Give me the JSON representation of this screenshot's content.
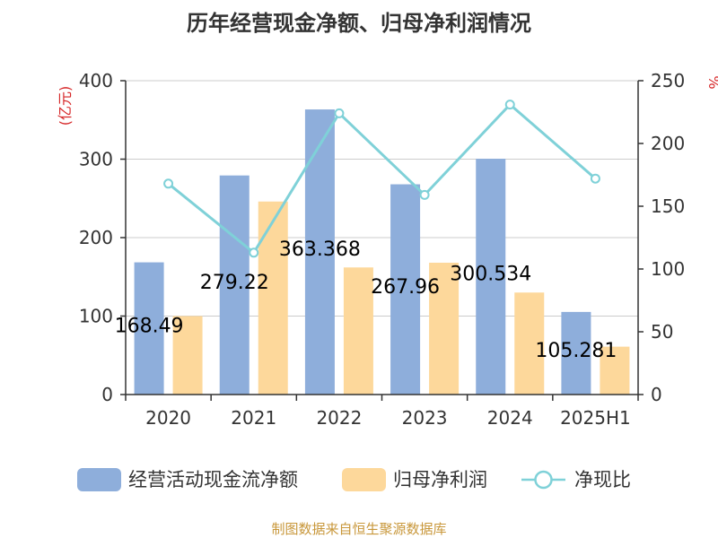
{
  "chart_data": {
    "type": "bar",
    "title": "历年经营现金净额、归母净利润情况",
    "y_left_unit": "(亿元)",
    "y_right_unit": "%",
    "y_left_range": [
      0,
      400
    ],
    "y_left_ticks": [
      "0",
      "100",
      "200",
      "300",
      "400"
    ],
    "y_right_range": [
      0,
      250
    ],
    "y_right_ticks": [
      "0",
      "50",
      "100",
      "150",
      "200",
      "250"
    ],
    "grid": true,
    "legend_position": "bottom",
    "categories": [
      "2020",
      "2021",
      "2022",
      "2023",
      "2024",
      "2025H1"
    ],
    "series": [
      {
        "name": "经营活动现金流净额",
        "type": "bar",
        "axis": "left",
        "color": "#8eaedb",
        "values": [
          168.49,
          279.22,
          363.368,
          267.96,
          300.534,
          105.281
        ],
        "labels": [
          "168.49",
          "279.22",
          "363.368",
          "267.96",
          "300.534",
          "105.281"
        ]
      },
      {
        "name": "归母净利润",
        "type": "bar",
        "axis": "left",
        "color": "#fdd89b",
        "values": [
          100,
          246,
          162,
          168,
          130,
          61
        ]
      },
      {
        "name": "净现比",
        "type": "line",
        "axis": "right",
        "color": "#7fd1d8",
        "values": [
          168,
          113,
          224,
          159,
          231,
          172
        ]
      }
    ],
    "source": "制图数据来自恒生聚源数据库"
  }
}
